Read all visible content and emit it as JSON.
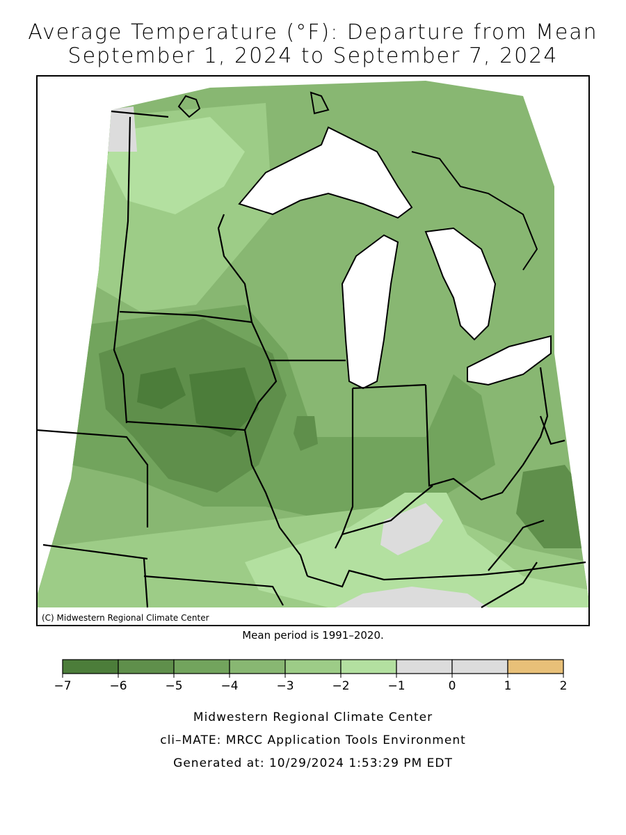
{
  "title": {
    "line1": "Average Temperature (°F): Departure from Mean",
    "line2": "September 1, 2024 to September 7, 2024"
  },
  "map": {
    "copyright": "(C) Midwestern Regional Climate Center",
    "mean_period_note": "Mean period is 1991–2020.",
    "colors": {
      "lake": "#ffffff",
      "border": "#000000",
      "out_of_domain": "#ffffff"
    }
  },
  "legend": {
    "ticks": [
      "−7",
      "−6",
      "−5",
      "−4",
      "−3",
      "−2",
      "−1",
      "0",
      "1",
      "2"
    ],
    "bins": [
      {
        "from": -7,
        "to": -6,
        "color": "#4c7d3a"
      },
      {
        "from": -6,
        "to": -5,
        "color": "#5f8f4b"
      },
      {
        "from": -5,
        "to": -4,
        "color": "#72a45d"
      },
      {
        "from": -4,
        "to": -3,
        "color": "#88b772"
      },
      {
        "from": -3,
        "to": -2,
        "color": "#9dcc87"
      },
      {
        "from": -2,
        "to": -1,
        "color": "#b3e0a0"
      },
      {
        "from": -1,
        "to": 0,
        "color": "#dcdcdc"
      },
      {
        "from": 0,
        "to": 1,
        "color": "#dcdcdc"
      },
      {
        "from": 1,
        "to": 2,
        "color": "#e8c078"
      }
    ]
  },
  "footer": {
    "line1": "Midwestern Regional Climate Center",
    "line2": "cli–MATE: MRCC Application Tools Environment",
    "line3": "Generated at: 10/29/2024 1:53:29 PM EDT"
  }
}
